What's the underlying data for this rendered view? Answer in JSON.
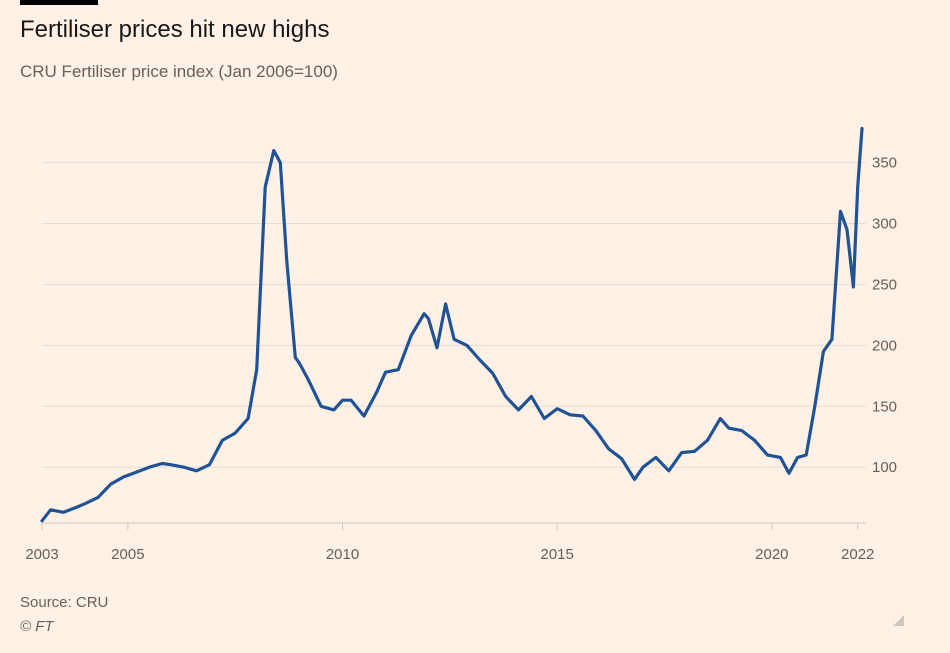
{
  "header": {
    "title": "Fertiliser prices hit new highs",
    "subtitle": "CRU Fertiliser price index (Jan 2006=100)"
  },
  "footer": {
    "source": "Source: CRU",
    "copyright": "© FT"
  },
  "colors": {
    "background": "#fff1e5",
    "line": "#1f5396",
    "grid": "#e7dcd3",
    "axis": "#cfc6bf",
    "text": "#66605c"
  },
  "chart_data": {
    "type": "line",
    "title": "Fertiliser prices hit new highs",
    "subtitle": "CRU Fertiliser price index (Jan 2006=100)",
    "xlabel": "",
    "ylabel": "",
    "xlim": [
      2003.0,
      2022.1
    ],
    "ylim": [
      55,
      385
    ],
    "y_axis_position": "right",
    "grid": "horizontal",
    "legend": "none",
    "x_ticks": [
      2003,
      2005,
      2010,
      2015,
      2020,
      2022
    ],
    "x_tick_labels": [
      "2003",
      "2005",
      "2010",
      "2015",
      "2020",
      "2022"
    ],
    "y_ticks": [
      100,
      150,
      200,
      250,
      300,
      350
    ],
    "y_tick_labels": [
      "100",
      "150",
      "200",
      "250",
      "300",
      "350"
    ],
    "series": [
      {
        "name": "",
        "x": [
          2003.0,
          2003.2,
          2003.5,
          2003.8,
          2004.0,
          2004.3,
          2004.6,
          2004.9,
          2005.2,
          2005.5,
          2005.8,
          2006.0,
          2006.3,
          2006.6,
          2006.9,
          2007.2,
          2007.5,
          2007.8,
          2008.0,
          2008.2,
          2008.4,
          2008.55,
          2008.7,
          2008.9,
          2009.0,
          2009.2,
          2009.5,
          2009.8,
          2010.0,
          2010.2,
          2010.5,
          2010.8,
          2011.0,
          2011.3,
          2011.6,
          2011.9,
          2012.0,
          2012.2,
          2012.4,
          2012.6,
          2012.9,
          2013.2,
          2013.5,
          2013.8,
          2014.1,
          2014.4,
          2014.7,
          2015.0,
          2015.3,
          2015.6,
          2015.9,
          2016.2,
          2016.5,
          2016.8,
          2017.0,
          2017.3,
          2017.6,
          2017.9,
          2018.2,
          2018.5,
          2018.8,
          2019.0,
          2019.3,
          2019.6,
          2019.9,
          2020.2,
          2020.4,
          2020.6,
          2020.8,
          2021.0,
          2021.2,
          2021.4,
          2021.6,
          2021.75,
          2021.9,
          2022.0,
          2022.1
        ],
        "values": [
          56,
          65,
          63,
          67,
          70,
          75,
          86,
          92,
          96,
          100,
          103,
          102,
          100,
          97,
          102,
          122,
          128,
          140,
          180,
          330,
          360,
          350,
          270,
          190,
          185,
          172,
          150,
          147,
          155,
          155,
          142,
          162,
          178,
          180,
          208,
          226,
          222,
          198,
          234,
          205,
          200,
          188,
          177,
          158,
          147,
          158,
          140,
          148,
          143,
          142,
          130,
          115,
          107,
          90,
          100,
          108,
          97,
          112,
          113,
          122,
          140,
          132,
          130,
          122,
          110,
          108,
          95,
          108,
          110,
          150,
          195,
          205,
          310,
          295,
          248,
          330,
          378
        ]
      }
    ]
  }
}
